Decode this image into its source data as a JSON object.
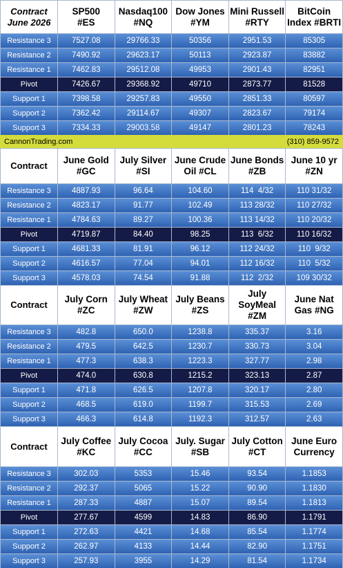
{
  "sections": [
    {
      "header": [
        "Contract\nJune 2026",
        "SP500\n#ES",
        "Nasdaq100\n#NQ",
        "Dow Jones\n#YM",
        "Mini Russell\n#RTY",
        "BitCoin\nIndex #BRTI"
      ],
      "rows": [
        [
          "Resistance 3",
          "7527.08",
          "29766.33",
          "50356",
          "2951.53",
          "85305"
        ],
        [
          "Resistance 2",
          "7490.92",
          "29623.17",
          "50113",
          "2923.87",
          "83882"
        ],
        [
          "Resistance 1",
          "7462.83",
          "29512.08",
          "49953",
          "2901.43",
          "82951"
        ],
        [
          "Pivot",
          "7426.67",
          "29368.92",
          "49710",
          "2873.77",
          "81528"
        ],
        [
          "Support 1",
          "7398.58",
          "29257.83",
          "49550",
          "2851.33",
          "80597"
        ],
        [
          "Support 2",
          "7362.42",
          "29114.67",
          "49307",
          "2823.67",
          "79174"
        ],
        [
          "Support 3",
          "7334.33",
          "29003.58",
          "49147",
          "2801.23",
          "78243"
        ]
      ]
    },
    {
      "header": [
        "Contract",
        "June Gold\n#GC",
        "July Silver\n#SI",
        "June Crude\nOil #CL",
        "June Bonds\n#ZB",
        "June 10 yr\n#ZN"
      ],
      "rows": [
        [
          "Resistance 3",
          "4887.93",
          "96.64",
          "104.60",
          "114  4/32",
          "110 31/32"
        ],
        [
          "Resistance 2",
          "4823.17",
          "91.77",
          "102.49",
          "113 28/32",
          "110 27/32"
        ],
        [
          "Resistance 1",
          "4784.63",
          "89.27",
          "100.36",
          "113 14/32",
          "110 20/32"
        ],
        [
          "Pivot",
          "4719.87",
          "84.40",
          "98.25",
          "113  6/32",
          "110 16/32"
        ],
        [
          "Support 1",
          "4681.33",
          "81.91",
          "96.12",
          "112 24/32",
          "110  9/32"
        ],
        [
          "Support 2",
          "4616.57",
          "77.04",
          "94.01",
          "112 16/32",
          "110  5/32"
        ],
        [
          "Support 3",
          "4578.03",
          "74.54",
          "91.88",
          "112  2/32",
          "109 30/32"
        ]
      ]
    },
    {
      "header": [
        "Contract",
        "July Corn\n#ZC",
        "July  Wheat\n#ZW",
        "July Beans\n#ZS",
        "July\nSoyMeal\n#ZM",
        "June Nat\nGas #NG"
      ],
      "rows": [
        [
          "Resistance 3",
          "482.8",
          "650.0",
          "1238.8",
          "335.37",
          "3.16"
        ],
        [
          "Resistance 2",
          "479.5",
          "642.5",
          "1230.7",
          "330.73",
          "3.04"
        ],
        [
          "Resistance 1",
          "477.3",
          "638.3",
          "1223.3",
          "327.77",
          "2.98"
        ],
        [
          "Pivot",
          "474.0",
          "630.8",
          "1215.2",
          "323.13",
          "2.87"
        ],
        [
          "Support 1",
          "471.8",
          "626.5",
          "1207.8",
          "320.17",
          "2.80"
        ],
        [
          "Support 2",
          "468.5",
          "619.0",
          "1199.7",
          "315.53",
          "2.69"
        ],
        [
          "Support 3",
          "466.3",
          "614.8",
          "1192.3",
          "312.57",
          "2.63"
        ]
      ]
    },
    {
      "header": [
        "Contract",
        "July Coffee\n#KC",
        "July Cocoa\n#CC",
        "July. Sugar\n#SB",
        "July Cotton\n#CT",
        "June Euro\nCurrency"
      ],
      "rows": [
        [
          "Resistance 3",
          "302.03",
          "5353",
          "15.46",
          "93.54",
          "1.1853"
        ],
        [
          "Resistance 2",
          "292.37",
          "5065",
          "15.22",
          "90.90",
          "1.1830"
        ],
        [
          "Resistance 1",
          "287.33",
          "4887",
          "15.07",
          "89.54",
          "1.1813"
        ],
        [
          "Pivot",
          "277.67",
          "4599",
          "14.83",
          "86.90",
          "1.1791"
        ],
        [
          "Support 1",
          "272.63",
          "4421",
          "14.68",
          "85.54",
          "1.1774"
        ],
        [
          "Support 2",
          "262.97",
          "4133",
          "14.44",
          "82.90",
          "1.1751"
        ],
        [
          "Support 3",
          "257.93",
          "3955",
          "14.29",
          "81.54",
          "1.1734"
        ]
      ]
    }
  ],
  "banner": {
    "left": "CannonTrading.com",
    "right": "(310) 859-9572"
  }
}
